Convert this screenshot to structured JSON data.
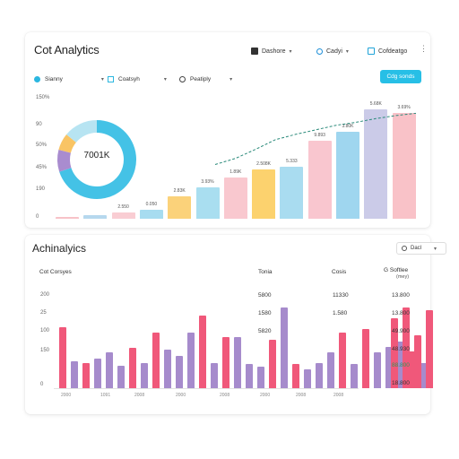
{
  "app": {
    "title": "Cot Analytics"
  },
  "header": {
    "btn1_label": "Dashore",
    "btn2_label": "Cadyi",
    "btn3_label": "Cofdeatgo"
  },
  "filters": [
    {
      "label": "Sianny"
    },
    {
      "label": "Coatsyh"
    },
    {
      "label": "Peatiply"
    }
  ],
  "primary_button": {
    "label": "Cdg sonds"
  },
  "top_chart": {
    "y_ticks": [
      "150%",
      "90",
      "50%",
      "45%",
      "190",
      "0"
    ],
    "donut": {
      "center_label": "7001K",
      "slices": [
        {
          "value": 70,
          "color": "#44c2e6"
        },
        {
          "value": 9,
          "color": "#a98ccf"
        },
        {
          "value": 7,
          "color": "#f9c464"
        },
        {
          "value": 14,
          "color": "#b7e4f2"
        }
      ]
    },
    "bar_labels": [
      "",
      "",
      "2.550",
      "0.050",
      "2.83K",
      "3.93%",
      "1.89K",
      "2.508K",
      "5.333",
      "9.893",
      "3.80K",
      "5.68K",
      "3.69%"
    ],
    "colors": [
      "#f7c2c8",
      "#b6d8ee",
      "#f9cdd3",
      "#a7dcf0",
      "#fbd27a",
      "#a9def0",
      "#f9c8cf",
      "#fcd26e",
      "#a9dcf0",
      "#f9c6cf",
      "#9fd6ef",
      "#cbcbe8",
      "#f9c2c8"
    ],
    "values": [
      2,
      5,
      8,
      12,
      30,
      42,
      55,
      66,
      69,
      104,
      115,
      145,
      141
    ],
    "trend": [
      72,
      80,
      92,
      105,
      112,
      118,
      124,
      128,
      133,
      137,
      140
    ]
  },
  "bottom": {
    "title": "Achinalyics",
    "select_label": "Dacl",
    "columns": [
      "Cot Corsyes",
      "Tonia",
      "Cosis",
      "G Softlee"
    ],
    "columns_sub": "(mey)",
    "y_ticks": [
      "200",
      "25",
      "100",
      "150",
      "0"
    ],
    "col1_values": [
      "5800",
      "1580",
      "5820"
    ],
    "col2_values": [
      "11330",
      "1.580"
    ],
    "col3_values": [
      "13.800",
      "13.800",
      "49.900",
      "48.930",
      "88.800",
      "18.800"
    ],
    "x_labels": [
      "2000",
      "1091",
      "2008",
      "2000",
      "2008",
      "2000",
      "2008",
      "2008"
    ],
    "colors": {
      "pink": "#f0587a",
      "purple": "#a68bcc"
    },
    "series": [
      {
        "values": [
          72,
          30,
          42,
          47,
          65,
          38,
          85,
          60,
          28,
          57,
          28,
          30,
          65,
          70,
          48,
          43
        ]
      },
      {
        "values": [
          32,
          35,
          26,
          29,
          45,
          65,
          30,
          60,
          25,
          95,
          22,
          42,
          28,
          42,
          55,
          30
        ]
      }
    ],
    "tail": [
      82,
      95,
      62,
      92
    ]
  }
}
